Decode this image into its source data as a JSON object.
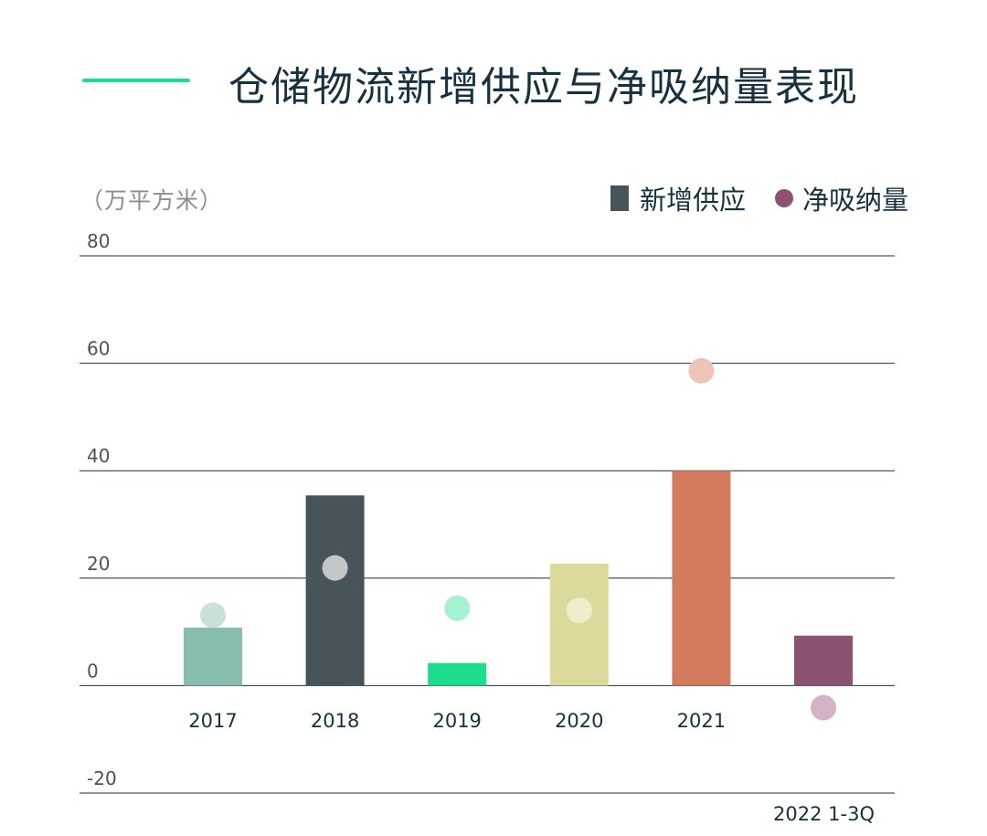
{
  "header": {
    "title": "仓储物流新增供应与净吸纳量表现",
    "accent_color": "#1ddc8e"
  },
  "chart_data": {
    "type": "bar",
    "unit_label": "（万平方米）",
    "categories": [
      "2017",
      "2018",
      "2019",
      "2020",
      "2021",
      "2022 1-3Q"
    ],
    "series": [
      {
        "name": "新增供应",
        "type": "bar",
        "values": [
          10.8,
          35.4,
          4.2,
          22.7,
          40.0,
          9.3
        ],
        "colors": [
          "#86bdb0",
          "#47555a",
          "#1ddc8e",
          "#dbd99b",
          "#d37b5d",
          "#8b5272"
        ],
        "legend_color": "#47555a"
      },
      {
        "name": "净吸纳量",
        "type": "scatter",
        "values": [
          13.1,
          21.9,
          14.4,
          14.0,
          58.6,
          -4.1
        ],
        "colors": [
          "#c7e0da",
          "#c2c6c7",
          "#a5f2d3",
          "#efedcc",
          "#edc5b6",
          "#d4b3c6"
        ],
        "legend_color": "#8b5272"
      }
    ],
    "ylim": [
      -20,
      80
    ],
    "yticks": [
      -20,
      0,
      20,
      40,
      60,
      80
    ],
    "ytick_labels": [
      "-20",
      "0",
      "20",
      "40",
      "60",
      "80"
    ],
    "grid": true,
    "legend_position": "top-right"
  }
}
